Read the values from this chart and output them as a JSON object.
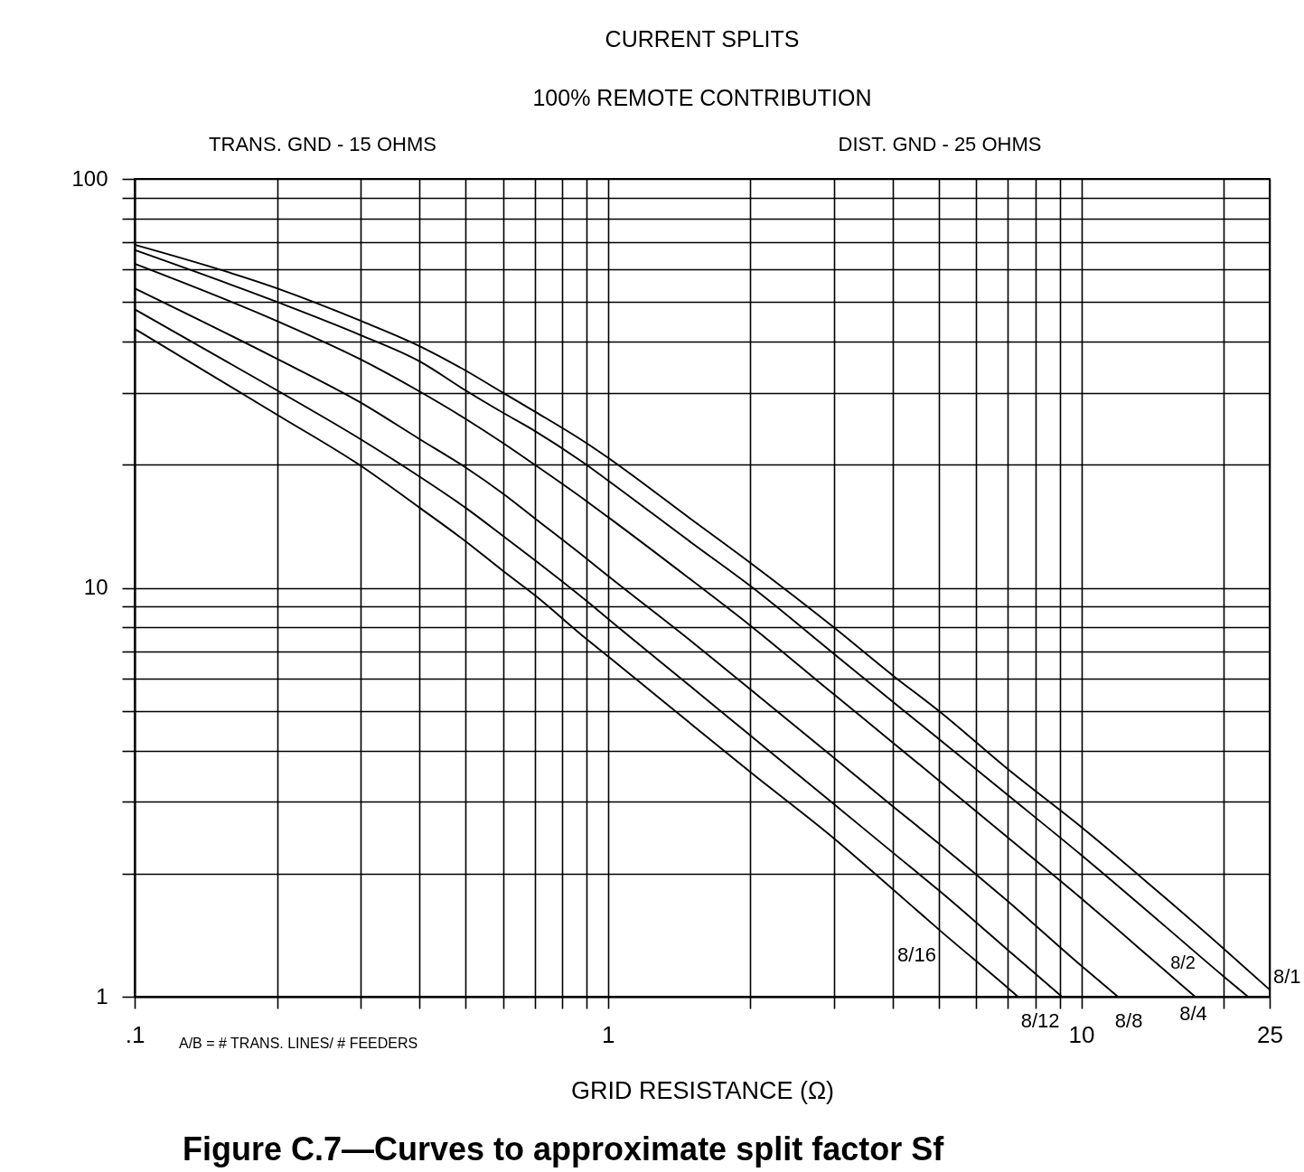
{
  "chart_data": {
    "type": "line",
    "title": "CURRENT SPLITS",
    "subtitle": "100% REMOTE CONTRIBUTION",
    "xlabel": "GRID RESISTANCE (Ω)",
    "annotations": [
      "TRANS. GND - 15 OHMS",
      "DIST. GND - 25 OHMS",
      "A/B = # TRANS. LINES/ # FEEDERS",
      "Figure C.7—Curves to approximate split factor Sf"
    ],
    "log": "xy",
    "grid": true,
    "line_style": "solid",
    "xlim": [
      0.1,
      25
    ],
    "ylim": [
      1,
      100
    ],
    "xticks": [
      {
        "value": 0.1,
        "label": ".1"
      },
      {
        "value": 0.2,
        "label": null
      },
      {
        "value": 0.3,
        "label": null
      },
      {
        "value": 0.4,
        "label": null
      },
      {
        "value": 0.5,
        "label": null
      },
      {
        "value": 0.6,
        "label": null
      },
      {
        "value": 0.7,
        "label": null
      },
      {
        "value": 0.8,
        "label": null
      },
      {
        "value": 0.9,
        "label": null
      },
      1,
      {
        "value": 2,
        "label": null
      },
      {
        "value": 3,
        "label": null
      },
      {
        "value": 4,
        "label": null
      },
      {
        "value": 5,
        "label": null
      },
      {
        "value": 6,
        "label": null
      },
      {
        "value": 7,
        "label": null
      },
      {
        "value": 8,
        "label": null
      },
      {
        "value": 9,
        "label": null
      },
      10,
      {
        "value": 20,
        "label": null
      },
      25
    ],
    "yticks": [
      1,
      {
        "value": 2,
        "label": null
      },
      {
        "value": 3,
        "label": null
      },
      {
        "value": 4,
        "label": null
      },
      {
        "value": 5,
        "label": null
      },
      {
        "value": 6,
        "label": null
      },
      {
        "value": 7,
        "label": null
      },
      {
        "value": 8,
        "label": null
      },
      {
        "value": 9,
        "label": null
      },
      10,
      {
        "value": 20,
        "label": null
      },
      {
        "value": 30,
        "label": null
      },
      {
        "value": 40,
        "label": null
      },
      {
        "value": 50,
        "label": null
      },
      {
        "value": 60,
        "label": null
      },
      {
        "value": 70,
        "label": null
      },
      {
        "value": 80,
        "label": null
      },
      {
        "value": 90,
        "label": null
      },
      100
    ],
    "series": [
      {
        "name": "8/1",
        "color": "#000000",
        "x": [
          0.1,
          0.2,
          0.3,
          0.4,
          0.5,
          0.6,
          0.7,
          0.9,
          1,
          1.5,
          2,
          3,
          4,
          5,
          7,
          10,
          15,
          20,
          25
        ],
        "values": [
          69,
          54,
          45,
          39,
          34,
          30,
          27,
          22.6,
          20.8,
          14.7,
          11.5,
          8.0,
          6.1,
          5.0,
          3.6,
          2.6,
          1.75,
          1.31,
          1.04
        ]
      },
      {
        "name": "8/2",
        "color": "#000000",
        "x": [
          0.1,
          0.2,
          0.3,
          0.4,
          0.5,
          0.6,
          0.7,
          0.9,
          1,
          1.5,
          2,
          3,
          4,
          5,
          7,
          10,
          15,
          20,
          22.5
        ],
        "values": [
          67,
          50,
          41.5,
          35.8,
          30.4,
          26.8,
          24.2,
          20,
          18.3,
          12.9,
          10.1,
          6.9,
          5.26,
          4.27,
          3.11,
          2.22,
          1.49,
          1.12,
          1
        ]
      },
      {
        "name": "8/4",
        "color": "#000000",
        "x": [
          0.1,
          0.2,
          0.3,
          0.4,
          0.5,
          0.6,
          0.7,
          0.9,
          1,
          1.5,
          2,
          3,
          4,
          5,
          7,
          10,
          15,
          17.4
        ],
        "values": [
          62,
          44.9,
          36.2,
          30.2,
          25.9,
          22.6,
          20,
          16.3,
          14.9,
          10.45,
          8.08,
          5.49,
          4.18,
          3.38,
          2.45,
          1.74,
          1.16,
          1
        ]
      },
      {
        "name": "8/8",
        "color": "#000000",
        "x": [
          0.1,
          0.2,
          0.3,
          0.4,
          0.5,
          0.6,
          0.7,
          0.9,
          1,
          1.5,
          2,
          3,
          4,
          5,
          7,
          10,
          11.95
        ],
        "values": [
          54,
          36.3,
          28.4,
          23.1,
          19.7,
          17.0,
          14.8,
          11.8,
          10.7,
          7.4,
          5.64,
          3.84,
          2.92,
          2.37,
          1.71,
          1.19,
          1
        ]
      },
      {
        "name": "8/12",
        "color": "#000000",
        "x": [
          0.1,
          0.2,
          0.3,
          0.4,
          0.5,
          0.6,
          0.7,
          0.9,
          1,
          1.5,
          2,
          3,
          4,
          5,
          7,
          9.1
        ],
        "values": [
          48,
          30.4,
          23.1,
          18.7,
          15.7,
          13.4,
          11.7,
          9.3,
          8.4,
          5.72,
          4.35,
          2.96,
          2.25,
          1.82,
          1.3,
          1
        ]
      },
      {
        "name": "8/16",
        "color": "#000000",
        "x": [
          0.1,
          0.2,
          0.3,
          0.4,
          0.5,
          0.6,
          0.7,
          0.9,
          1,
          1.5,
          2,
          3,
          4,
          5,
          7,
          7.35
        ],
        "values": [
          43,
          26.5,
          19.9,
          15.7,
          13.0,
          11.0,
          9.6,
          7.5,
          6.8,
          4.64,
          3.54,
          2.44,
          1.83,
          1.46,
          1.05,
          1
        ]
      }
    ]
  }
}
